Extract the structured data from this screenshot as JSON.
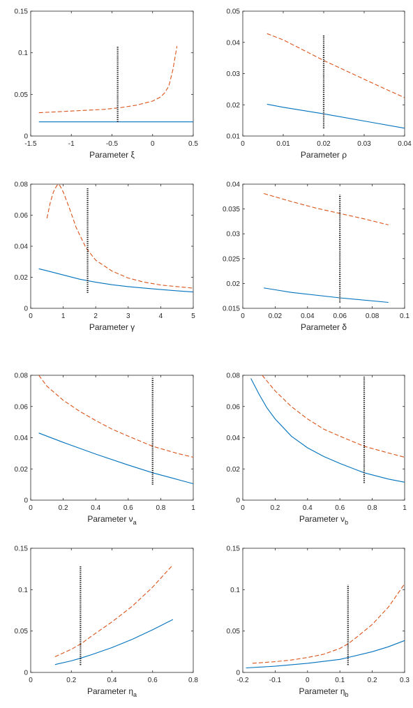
{
  "colors": {
    "blue": "#0072BD",
    "orange": "#D95319",
    "marker": "#000000"
  },
  "chart_data": [
    {
      "type": "line",
      "id": "xi",
      "xlabel": "Parameter ξ",
      "xlim": [
        -1.5,
        0.5
      ],
      "ylim": [
        0,
        0.15
      ],
      "xticks": [
        "-1.5",
        "-1",
        "-0.5",
        "0",
        "0.5"
      ],
      "yticks": [
        "0",
        "0.05",
        "0.1",
        "0.15"
      ],
      "series": [
        {
          "style": "solid",
          "color": "#0072BD",
          "x": [
            -1.4,
            -1.0,
            -0.5,
            0.0,
            0.5
          ],
          "y": [
            0.017,
            0.017,
            0.017,
            0.017,
            0.017
          ]
        },
        {
          "style": "dashed",
          "color": "#D95319",
          "x": [
            -1.4,
            -1.2,
            -1.0,
            -0.8,
            -0.6,
            -0.4,
            -0.2,
            0.0,
            0.1,
            0.15,
            0.2,
            0.22,
            0.25,
            0.28,
            0.3
          ],
          "y": [
            0.028,
            0.029,
            0.03,
            0.031,
            0.032,
            0.034,
            0.037,
            0.042,
            0.047,
            0.052,
            0.06,
            0.068,
            0.08,
            0.097,
            0.108
          ]
        }
      ],
      "vline": {
        "x": -0.43,
        "y": [
          0.017,
          0.108
        ]
      }
    },
    {
      "type": "line",
      "id": "rho",
      "xlabel": "Parameter ρ",
      "xlim": [
        0,
        0.04
      ],
      "ylim": [
        0.01,
        0.05
      ],
      "xticks": [
        "0",
        "0.01",
        "0.02",
        "0.03",
        "0.04"
      ],
      "yticks": [
        "0.01",
        "0.02",
        "0.03",
        "0.04",
        "0.05"
      ],
      "series": [
        {
          "style": "solid",
          "color": "#0072BD",
          "x": [
            0.006,
            0.01,
            0.02,
            0.03,
            0.04
          ],
          "y": [
            0.0202,
            0.0192,
            0.0171,
            0.0148,
            0.0125
          ]
        },
        {
          "style": "dashed",
          "color": "#D95319",
          "x": [
            0.006,
            0.01,
            0.015,
            0.02,
            0.025,
            0.03,
            0.035,
            0.04
          ],
          "y": [
            0.0428,
            0.0408,
            0.0375,
            0.0342,
            0.0312,
            0.0282,
            0.0252,
            0.0223
          ]
        }
      ],
      "vline": {
        "x": 0.02,
        "y": [
          0.0125,
          0.0425
        ]
      }
    },
    {
      "type": "line",
      "id": "gamma",
      "xlabel": "Parameter γ",
      "xlim": [
        0,
        5
      ],
      "ylim": [
        0,
        0.08
      ],
      "xticks": [
        "0",
        "1",
        "2",
        "3",
        "4",
        "5"
      ],
      "yticks": [
        "0",
        "0.02",
        "0.04",
        "0.06",
        "0.08"
      ],
      "series": [
        {
          "style": "solid",
          "color": "#0072BD",
          "x": [
            0.25,
            0.5,
            1.0,
            1.5,
            2.0,
            2.5,
            3.0,
            3.5,
            4.0,
            4.5,
            5.0
          ],
          "y": [
            0.0255,
            0.0242,
            0.0215,
            0.0188,
            0.0168,
            0.0152,
            0.014,
            0.013,
            0.0121,
            0.0113,
            0.0105
          ]
        },
        {
          "style": "dashed",
          "color": "#D95319",
          "x": [
            0.5,
            0.6,
            0.7,
            0.8,
            0.85,
            0.9,
            1.0,
            1.2,
            1.4,
            1.7,
            2.0,
            2.5,
            3.0,
            3.5,
            4.0,
            4.5,
            5.0
          ],
          "y": [
            0.058,
            0.068,
            0.075,
            0.079,
            0.08,
            0.079,
            0.075,
            0.064,
            0.052,
            0.039,
            0.031,
            0.024,
            0.0195,
            0.0168,
            0.015,
            0.014,
            0.013
          ]
        }
      ],
      "vline": {
        "x": 1.75,
        "y": [
          0.01,
          0.078
        ]
      }
    },
    {
      "type": "line",
      "id": "delta",
      "xlabel": "Parameter δ",
      "xlim": [
        0,
        0.1
      ],
      "ylim": [
        0.015,
        0.04
      ],
      "xticks": [
        "0",
        "0.02",
        "0.04",
        "0.06",
        "0.08",
        "0.1"
      ],
      "yticks": [
        "0.015",
        "0.02",
        "0.025",
        "0.03",
        "0.035",
        "0.04"
      ],
      "series": [
        {
          "style": "solid",
          "color": "#0072BD",
          "x": [
            0.013,
            0.03,
            0.06,
            0.09
          ],
          "y": [
            0.0191,
            0.0182,
            0.0171,
            0.0162
          ]
        },
        {
          "style": "dashed",
          "color": "#D95319",
          "x": [
            0.013,
            0.03,
            0.045,
            0.06,
            0.075,
            0.09
          ],
          "y": [
            0.0381,
            0.0365,
            0.0352,
            0.0341,
            0.033,
            0.0318
          ]
        }
      ],
      "vline": {
        "x": 0.06,
        "y": [
          0.0162,
          0.0379
        ]
      }
    },
    {
      "type": "line",
      "id": "nu_a",
      "xlabel": "Parameter ν",
      "xsub": "a",
      "xlim": [
        0,
        1
      ],
      "ylim": [
        0,
        0.08
      ],
      "xticks": [
        "0",
        "0.2",
        "0.4",
        "0.6",
        "0.8",
        "1"
      ],
      "yticks": [
        "0",
        "0.02",
        "0.04",
        "0.06",
        "0.08"
      ],
      "series": [
        {
          "style": "solid",
          "color": "#0072BD",
          "x": [
            0.05,
            0.2,
            0.4,
            0.6,
            0.75,
            0.9,
            1.0
          ],
          "y": [
            0.043,
            0.037,
            0.0295,
            0.0225,
            0.0175,
            0.0133,
            0.0105
          ]
        },
        {
          "style": "dashed",
          "color": "#D95319",
          "x": [
            0.05,
            0.1,
            0.2,
            0.3,
            0.4,
            0.5,
            0.6,
            0.75,
            0.9,
            1.0
          ],
          "y": [
            0.08,
            0.073,
            0.064,
            0.057,
            0.051,
            0.0455,
            0.041,
            0.0345,
            0.03,
            0.0275
          ]
        }
      ],
      "vline": {
        "x": 0.75,
        "y": [
          0.01,
          0.079
        ]
      }
    },
    {
      "type": "line",
      "id": "nu_b",
      "xlabel": "Parameter ν",
      "xsub": "b",
      "xlim": [
        0,
        1
      ],
      "ylim": [
        0,
        0.08
      ],
      "xticks": [
        "0",
        "0.2",
        "0.4",
        "0.6",
        "0.8",
        "1"
      ],
      "yticks": [
        "0",
        "0.02",
        "0.04",
        "0.06",
        "0.08"
      ],
      "series": [
        {
          "style": "solid",
          "color": "#0072BD",
          "x": [
            0.05,
            0.1,
            0.15,
            0.2,
            0.3,
            0.4,
            0.5,
            0.6,
            0.75,
            0.9,
            1.0
          ],
          "y": [
            0.078,
            0.068,
            0.059,
            0.052,
            0.041,
            0.0335,
            0.028,
            0.0235,
            0.0175,
            0.0135,
            0.0115
          ]
        },
        {
          "style": "dashed",
          "color": "#D95319",
          "x": [
            0.12,
            0.2,
            0.3,
            0.4,
            0.5,
            0.6,
            0.75,
            0.9,
            1.0
          ],
          "y": [
            0.08,
            0.07,
            0.06,
            0.052,
            0.0455,
            0.041,
            0.0345,
            0.0302,
            0.0275
          ]
        }
      ],
      "vline": {
        "x": 0.75,
        "y": [
          0.011,
          0.079
        ]
      }
    },
    {
      "type": "line",
      "id": "eta_a",
      "xlabel": "Parameter η",
      "xsub": "a",
      "xlim": [
        0,
        0.8
      ],
      "ylim": [
        0,
        0.15
      ],
      "xticks": [
        "0",
        "0.2",
        "0.4",
        "0.6",
        "0.8"
      ],
      "yticks": [
        "0",
        "0.05",
        "0.1",
        "0.15"
      ],
      "series": [
        {
          "style": "solid",
          "color": "#0072BD",
          "x": [
            0.12,
            0.2,
            0.25,
            0.3,
            0.4,
            0.5,
            0.6,
            0.7
          ],
          "y": [
            0.0095,
            0.014,
            0.0175,
            0.0215,
            0.03,
            0.04,
            0.0515,
            0.064
          ]
        },
        {
          "style": "dashed",
          "color": "#D95319",
          "x": [
            0.12,
            0.2,
            0.25,
            0.3,
            0.4,
            0.5,
            0.6,
            0.7
          ],
          "y": [
            0.019,
            0.028,
            0.035,
            0.044,
            0.061,
            0.08,
            0.103,
            0.13
          ]
        }
      ],
      "vline": {
        "x": 0.245,
        "y": [
          0.009,
          0.128
        ]
      }
    },
    {
      "type": "line",
      "id": "eta_b",
      "xlabel": "Parameter η",
      "xsub": "b",
      "xlim": [
        -0.2,
        0.3
      ],
      "ylim": [
        0,
        0.15
      ],
      "xticks": [
        "-0.2",
        "-0.1",
        "0",
        "0.1",
        "0.2",
        "0.3"
      ],
      "yticks": [
        "0",
        "0.05",
        "0.1",
        "0.15"
      ],
      "series": [
        {
          "style": "solid",
          "color": "#0072BD",
          "x": [
            -0.19,
            -0.1,
            0.0,
            0.1,
            0.125,
            0.2,
            0.25,
            0.3
          ],
          "y": [
            0.0055,
            0.0075,
            0.011,
            0.0158,
            0.018,
            0.025,
            0.031,
            0.0385
          ]
        },
        {
          "style": "dashed",
          "color": "#D95319",
          "x": [
            -0.17,
            -0.1,
            -0.05,
            0.0,
            0.05,
            0.1,
            0.125,
            0.15,
            0.2,
            0.25,
            0.3
          ],
          "y": [
            0.011,
            0.013,
            0.015,
            0.018,
            0.022,
            0.029,
            0.0345,
            0.042,
            0.058,
            0.079,
            0.107
          ]
        }
      ],
      "vline": {
        "x": 0.125,
        "y": [
          0.009,
          0.106
        ]
      }
    }
  ]
}
